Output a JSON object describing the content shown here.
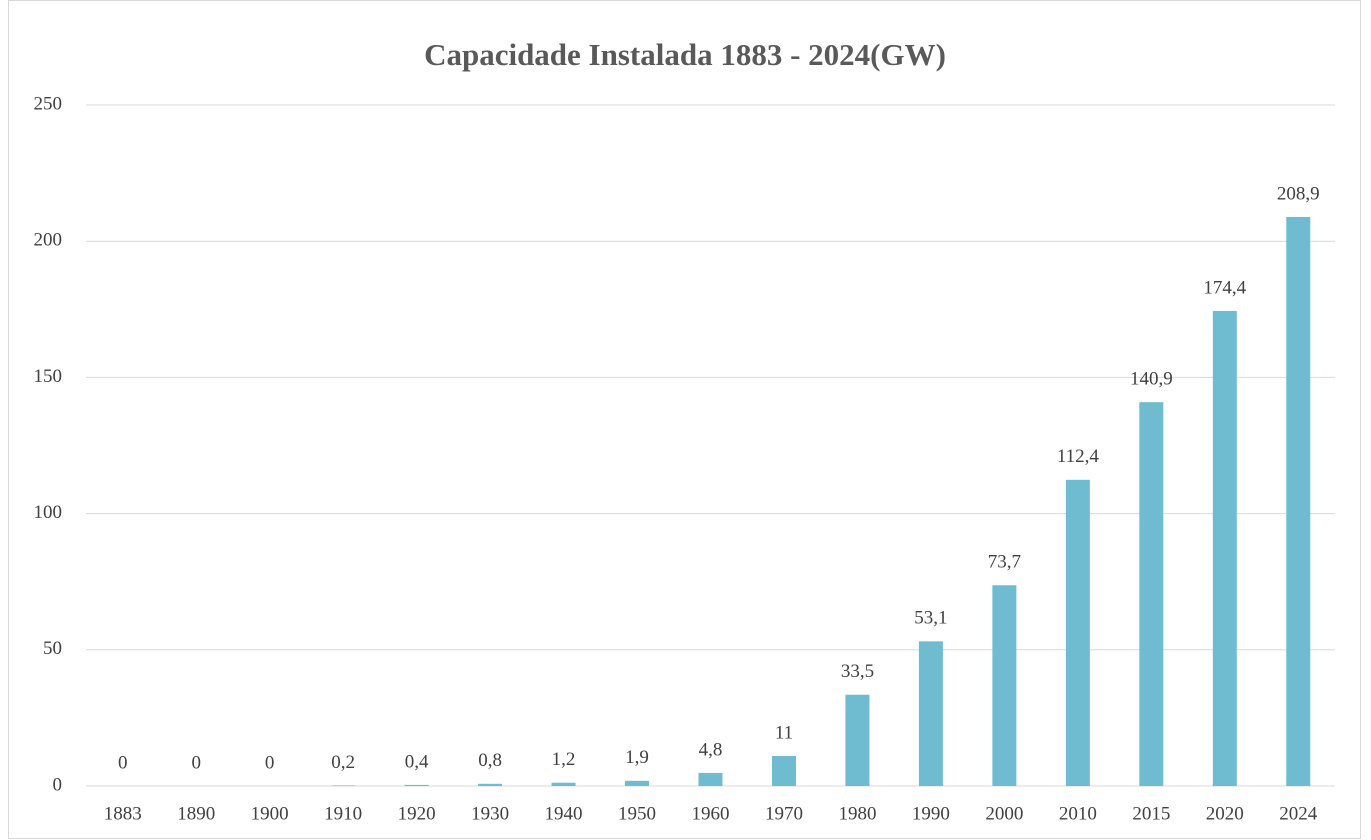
{
  "chart_data": {
    "type": "bar",
    "title": "Capacidade Instalada 1883 - 2024(GW)",
    "categories": [
      "1883",
      "1890",
      "1900",
      "1910",
      "1920",
      "1930",
      "1940",
      "1950",
      "1960",
      "1970",
      "1980",
      "1990",
      "2000",
      "2010",
      "2015",
      "2020",
      "2024"
    ],
    "values": [
      0,
      0,
      0,
      0.2,
      0.4,
      0.8,
      1.2,
      1.9,
      4.8,
      11,
      33.5,
      53.1,
      73.7,
      112.4,
      140.9,
      174.4,
      208.9
    ],
    "value_labels": [
      "0",
      "0",
      "0",
      "0,2",
      "0,4",
      "0,8",
      "1,2",
      "1,9",
      "4,8",
      "11",
      "33,5",
      "53,1",
      "73,7",
      "112,4",
      "140,9",
      "174,4",
      "208,9"
    ],
    "color": "#6fbcd0",
    "ylim": [
      0,
      250
    ],
    "yticks": [
      0,
      50,
      100,
      150,
      200,
      250
    ],
    "grid": true
  }
}
